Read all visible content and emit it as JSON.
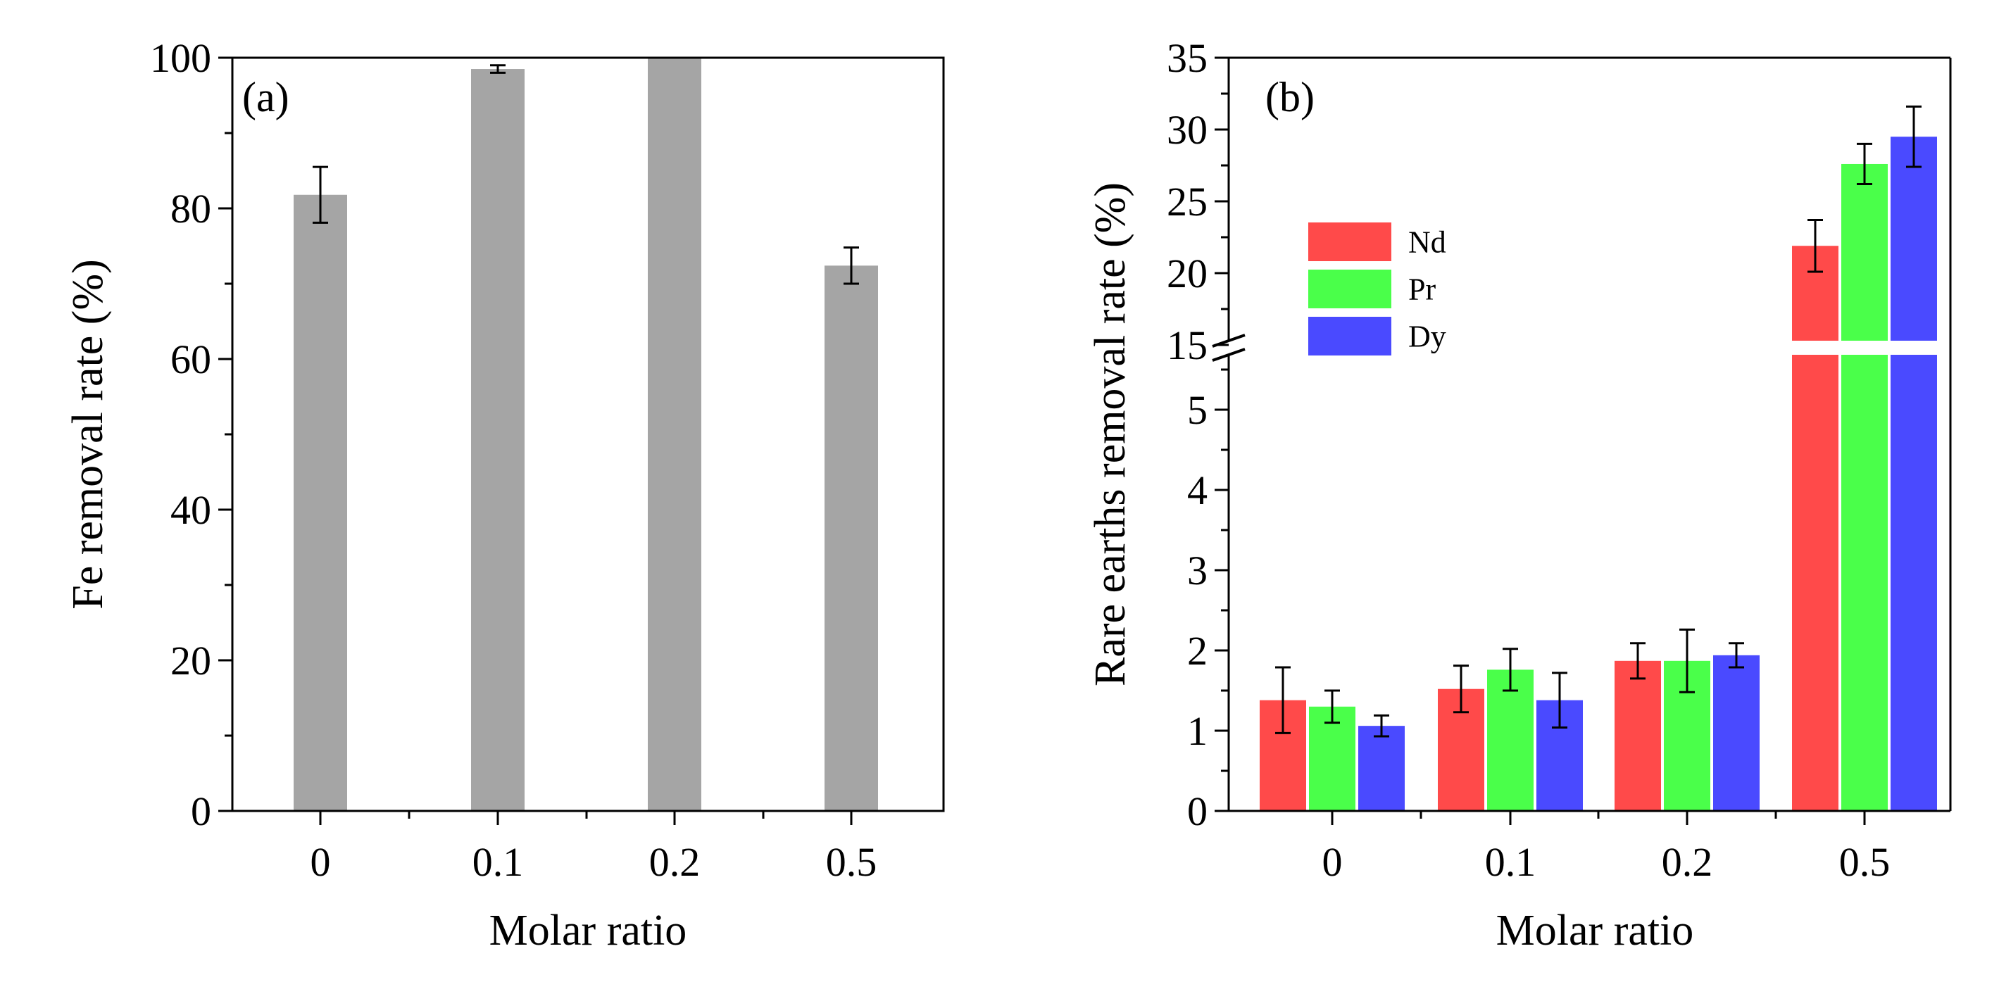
{
  "figure": {
    "background": "#ffffff",
    "bar_gap_color": "#ffffff"
  },
  "chart_data": [
    {
      "type": "bar",
      "panel_label": "(a)",
      "title": "",
      "xlabel": "Molar ratio",
      "ylabel": "Fe removal rate (%)",
      "categories": [
        "0",
        "0.1",
        "0.2",
        "0.5"
      ],
      "ylim": [
        0,
        100
      ],
      "yticks": [
        "0",
        "20",
        "40",
        "60",
        "80",
        "100"
      ],
      "grid": false,
      "series": [
        {
          "color": "#a5a5a5",
          "values": [
            81.8,
            98.5,
            100.0,
            72.4
          ],
          "errors": [
            3.7,
            0.5,
            0.0,
            2.4
          ]
        }
      ]
    },
    {
      "type": "bar",
      "panel_label": "(b)",
      "title": "",
      "xlabel": "Molar ratio",
      "ylabel": "Rare earths removal rate (%)",
      "categories": [
        "0",
        "0.1",
        "0.2",
        "0.5"
      ],
      "ylim": [
        0,
        35
      ],
      "axis_break": {
        "from": 5.8,
        "to": 14.9
      },
      "yticks_lower": [
        "0",
        "1",
        "2",
        "3",
        "4",
        "5"
      ],
      "yticks_upper": [
        "15",
        "20",
        "25",
        "30",
        "35"
      ],
      "grid": false,
      "legend_position": "upper-left",
      "series": [
        {
          "name": "Nd",
          "color": "#ff4a4a",
          "values": [
            1.38,
            1.52,
            1.87,
            21.9
          ],
          "errors": [
            0.41,
            0.29,
            0.22,
            1.8
          ]
        },
        {
          "name": "Pr",
          "color": "#4aff4a",
          "values": [
            1.3,
            1.76,
            1.87,
            27.6
          ],
          "errors": [
            0.2,
            0.26,
            0.39,
            1.4
          ]
        },
        {
          "name": "Dy",
          "color": "#4a4aff",
          "values": [
            1.06,
            1.38,
            1.94,
            29.5
          ],
          "errors": [
            0.13,
            0.34,
            0.15,
            2.1
          ]
        }
      ]
    }
  ]
}
